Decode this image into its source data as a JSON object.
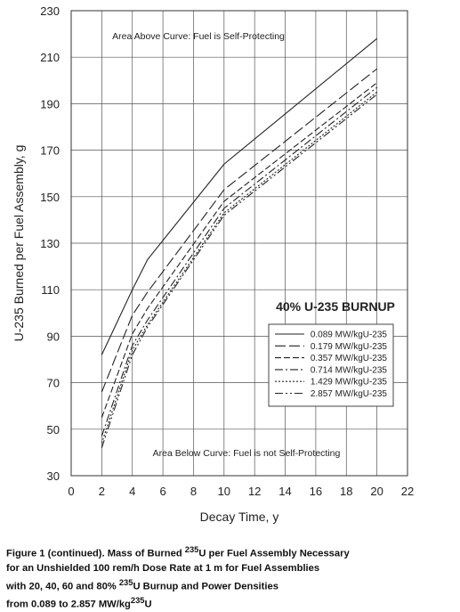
{
  "chart_data": {
    "type": "line",
    "xlabel": "Decay Time, y",
    "ylabel": "U-235 Burned per Fuel Assembly, g",
    "xlim": [
      0,
      22
    ],
    "ylim": [
      30,
      230
    ],
    "xticks": [
      0,
      2,
      4,
      6,
      8,
      10,
      12,
      14,
      16,
      18,
      20,
      22
    ],
    "yticks": [
      30,
      50,
      70,
      90,
      110,
      130,
      150,
      170,
      190,
      210,
      230
    ],
    "grid": true,
    "legend_title": "40% U-235 BURNUP",
    "legend_position": "lower-right",
    "annotations": {
      "above": "Area Above Curve: Fuel is Self-Protecting",
      "below": "Area Below Curve: Fuel is not Self-Protecting"
    },
    "x": [
      2,
      4,
      5,
      10,
      20
    ],
    "series": [
      {
        "name": "0.089 MW/kgU-235",
        "dash": "none",
        "values": [
          82,
          110,
          123,
          164,
          218
        ]
      },
      {
        "name": "0.179 MW/kgU-235",
        "dash": "12,4",
        "values": [
          66,
          99,
          109,
          153,
          205
        ]
      },
      {
        "name": "0.357 MW/kgU-235",
        "dash": "7,3",
        "values": [
          55,
          91,
          102,
          148,
          199
        ]
      },
      {
        "name": "0.714 MW/kgU-235",
        "dash": "9,3,2,3",
        "values": [
          47,
          86,
          97,
          145,
          197
        ]
      },
      {
        "name": "1.429 MW/kgU-235",
        "dash": "2,2",
        "values": [
          44,
          84,
          95,
          143,
          195
        ]
      },
      {
        "name": "2.857 MW/kgU-235",
        "dash": "9,3,2,3,2,3",
        "values": [
          42,
          82,
          94,
          142,
          194
        ]
      }
    ]
  },
  "caption": {
    "line1_pre": "Figure 1 (continued).  Mass of Burned ",
    "line1_sup": "235",
    "line1_post": "U per Fuel Assembly Necessary",
    "line2": "for an Unshielded 100 rem/h Dose Rate at 1 m for Fuel Assemblies",
    "line3_pre": "with 20, 40, 60 and 80% ",
    "line3_sup": "235",
    "line3_post": "U Burnup and Power Densities",
    "line4_pre": "from 0.089 to 2.857 MW/kg",
    "line4_sup": "235",
    "line4_post": "U"
  }
}
